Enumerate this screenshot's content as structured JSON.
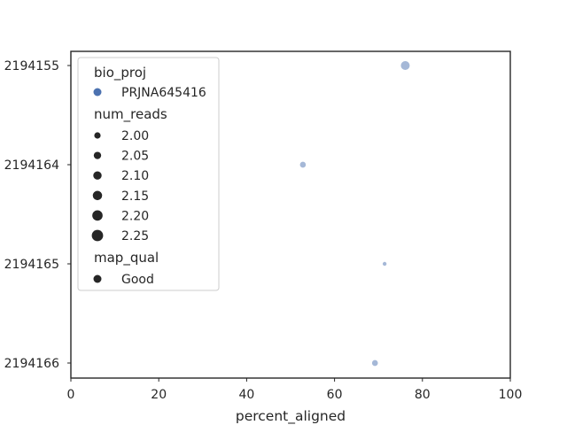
{
  "chart_data": {
    "type": "scatter",
    "title": "",
    "xlabel": "percent_aligned",
    "ylabel": "",
    "xlim": [
      0,
      100
    ],
    "xticks": [
      0,
      20,
      40,
      60,
      80,
      100
    ],
    "ycategories": [
      "2194155",
      "2194164",
      "2194165",
      "2194166"
    ],
    "grid": false,
    "legend_placement": "upper-left",
    "point_color": "#4c72b0",
    "point_opacity": 0.5,
    "points": [
      {
        "category": "2194155",
        "x": 76.1,
        "num_reads": 2.25,
        "bio_proj": "PRJNA645416",
        "map_qual": "Good"
      },
      {
        "category": "2194164",
        "x": 52.8,
        "num_reads": 2.1,
        "bio_proj": "PRJNA645416",
        "map_qual": "Good"
      },
      {
        "category": "2194165",
        "x": 71.4,
        "num_reads": 2.0,
        "bio_proj": "PRJNA645416",
        "map_qual": "Good"
      },
      {
        "category": "2194166",
        "x": 69.2,
        "num_reads": 2.1,
        "bio_proj": "PRJNA645416",
        "map_qual": "Good"
      }
    ],
    "legend": {
      "hue_title": "bio_proj",
      "hue_items": [
        {
          "label": "PRJNA645416",
          "color": "#4c72b0"
        }
      ],
      "size_title": "num_reads",
      "size_items": [
        {
          "label": "2.00",
          "value": 2.0
        },
        {
          "label": "2.05",
          "value": 2.05
        },
        {
          "label": "2.10",
          "value": 2.1
        },
        {
          "label": "2.15",
          "value": 2.15
        },
        {
          "label": "2.20",
          "value": 2.2
        },
        {
          "label": "2.25",
          "value": 2.25
        }
      ],
      "style_title": "map_qual",
      "style_items": [
        {
          "label": "Good"
        }
      ]
    }
  }
}
